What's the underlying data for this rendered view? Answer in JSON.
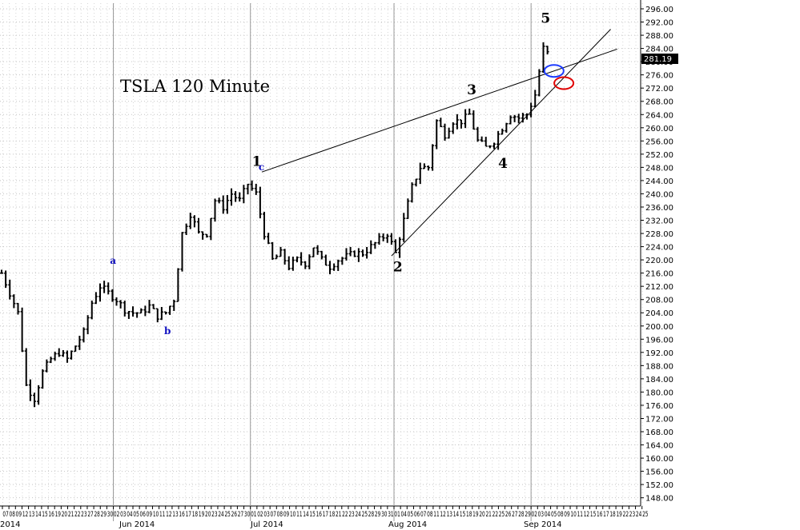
{
  "chart_data": {
    "type": "candlestick",
    "title": "TSLA 120 Minute",
    "xlabel": "",
    "ylabel": "",
    "ylim": [
      145,
      297
    ],
    "y_ticks": [
      "296.00",
      "292.00",
      "288.00",
      "284.00",
      "280.00",
      "276.00",
      "272.00",
      "268.00",
      "264.00",
      "260.00",
      "256.00",
      "252.00",
      "248.00",
      "244.00",
      "240.00",
      "236.00",
      "232.00",
      "228.00",
      "224.00",
      "220.00",
      "216.00",
      "212.00",
      "208.00",
      "204.00",
      "200.00",
      "196.00",
      "192.00",
      "188.00",
      "184.00",
      "180.00",
      "176.00",
      "172.00",
      "168.00",
      "164.00",
      "160.00",
      "156.00",
      "152.00",
      "148.00"
    ],
    "x_month_labels": [
      "2014",
      "Jun 2014",
      "Jul 2014",
      "Aug 2014",
      "Sep 2014"
    ],
    "x_day_labels": [
      "07",
      "08",
      "09",
      "12",
      "13",
      "14",
      "15",
      "16",
      "19",
      "20",
      "21",
      "22",
      "23",
      "27",
      "28",
      "29",
      "30",
      "02",
      "03",
      "04",
      "05",
      "06",
      "09",
      "10",
      "11",
      "12",
      "13",
      "16",
      "17",
      "18",
      "19",
      "20",
      "23",
      "24",
      "25",
      "26",
      "27",
      "30",
      "01",
      "02",
      "03",
      "07",
      "08",
      "09",
      "10",
      "11",
      "14",
      "15",
      "16",
      "17",
      "18",
      "21",
      "22",
      "23",
      "24",
      "25",
      "28",
      "29",
      "30",
      "31",
      "01",
      "04",
      "05",
      "06",
      "07",
      "08",
      "11",
      "12",
      "13",
      "14",
      "15",
      "18",
      "19",
      "20",
      "21",
      "22",
      "25",
      "26",
      "27",
      "28",
      "29",
      "02",
      "03",
      "04",
      "05",
      "08",
      "09",
      "10",
      "11",
      "12",
      "15",
      "16",
      "17",
      "18",
      "19",
      "22",
      "23",
      "24",
      "25"
    ],
    "last_price": "281.19",
    "grid": true,
    "price_series": [
      [
        0,
        216
      ],
      [
        1,
        210
      ],
      [
        2,
        204
      ],
      [
        3,
        182
      ],
      [
        4,
        178
      ],
      [
        5,
        186
      ],
      [
        6,
        190
      ],
      [
        7,
        192
      ],
      [
        8,
        190
      ],
      [
        9,
        194
      ],
      [
        10,
        198
      ],
      [
        11,
        207
      ],
      [
        12,
        212
      ],
      [
        13,
        210
      ],
      [
        14,
        208
      ],
      [
        15,
        205
      ],
      [
        16,
        204
      ],
      [
        17,
        204
      ],
      [
        18,
        206
      ],
      [
        19,
        203
      ],
      [
        20,
        204
      ],
      [
        21,
        208
      ],
      [
        22,
        228
      ],
      [
        23,
        234
      ],
      [
        24,
        228
      ],
      [
        25,
        228
      ],
      [
        26,
        238
      ],
      [
        27,
        236
      ],
      [
        28,
        240
      ],
      [
        29,
        238
      ],
      [
        30,
        243
      ],
      [
        31,
        240
      ],
      [
        32,
        228
      ],
      [
        33,
        220
      ],
      [
        34,
        222
      ],
      [
        35,
        218
      ],
      [
        36,
        220
      ],
      [
        37,
        219
      ],
      [
        38,
        224
      ],
      [
        39,
        220
      ],
      [
        40,
        218
      ],
      [
        41,
        220
      ],
      [
        42,
        221
      ],
      [
        43,
        222
      ],
      [
        44,
        222
      ],
      [
        45,
        224
      ],
      [
        46,
        226
      ],
      [
        47,
        228
      ],
      [
        48,
        222
      ],
      [
        49,
        232
      ],
      [
        50,
        242
      ],
      [
        51,
        248
      ],
      [
        52,
        248
      ],
      [
        53,
        262
      ],
      [
        54,
        258
      ],
      [
        55,
        262
      ],
      [
        56,
        262
      ],
      [
        57,
        264
      ],
      [
        58,
        256
      ],
      [
        59,
        254
      ],
      [
        60,
        256
      ],
      [
        61,
        260
      ],
      [
        62,
        264
      ],
      [
        63,
        263
      ],
      [
        64,
        264
      ],
      [
        65,
        270
      ],
      [
        66,
        284
      ],
      [
        67,
        281
      ]
    ],
    "annotations": [
      {
        "text": "1",
        "x": 30.5,
        "y": 248.5,
        "style": "wave"
      },
      {
        "text": "c",
        "x": 31.3,
        "y": 247.1,
        "style": "sub"
      },
      {
        "text": "2",
        "x": 47.7,
        "y": 216.5,
        "style": "wave"
      },
      {
        "text": "3",
        "x": 56.7,
        "y": 270.1,
        "style": "wave"
      },
      {
        "text": "4",
        "x": 60.5,
        "y": 247.9,
        "style": "wave"
      },
      {
        "text": "5",
        "x": 65.7,
        "y": 291.8,
        "style": "wave"
      },
      {
        "text": "a",
        "x": 13.2,
        "y": 218.8,
        "style": "sub"
      },
      {
        "text": "b",
        "x": 19.8,
        "y": 197.5,
        "style": "sub"
      }
    ],
    "trendlines": [
      {
        "name": "upper",
        "from": [
          31.7,
          246.6
        ],
        "to": [
          75.0,
          283.8
        ]
      },
      {
        "name": "lower",
        "from": [
          47.5,
          221.2
        ],
        "to": [
          74.2,
          289.8
        ]
      }
    ],
    "ellipses": [
      {
        "color": "#1e3cff",
        "x": 67.3,
        "y": 277.2
      },
      {
        "color": "#e00000",
        "x": 68.5,
        "y": 273.5
      }
    ]
  }
}
